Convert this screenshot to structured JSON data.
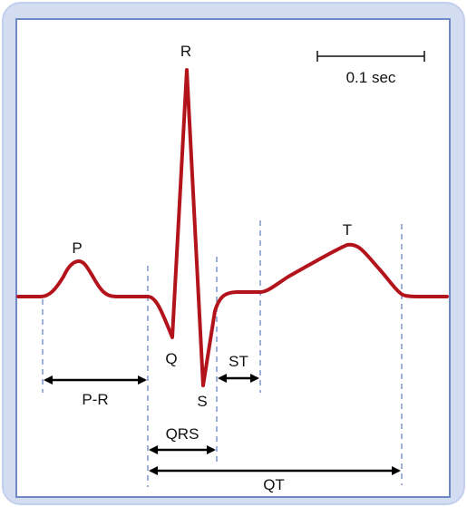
{
  "scale_bar": {
    "label": "0.1 sec"
  },
  "waves": {
    "p": "P",
    "q": "Q",
    "r": "R",
    "s": "S",
    "t": "T"
  },
  "intervals": {
    "pr": "P-R",
    "qrs": "QRS",
    "st": "ST",
    "qt": "QT"
  },
  "colors": {
    "frame_outer": "#c9d5ee",
    "frame_inner_border": "#6f88c6",
    "trace": "#b3141c",
    "guide_lines": "#7f95c8",
    "arrows": "#000000"
  }
}
